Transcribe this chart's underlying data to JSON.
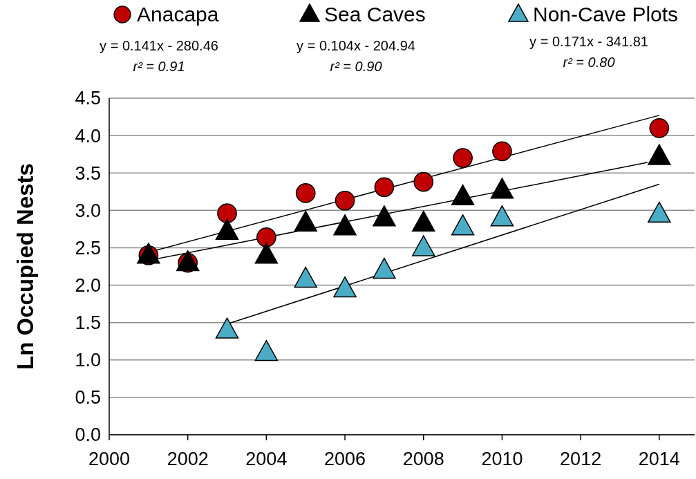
{
  "chart_data": {
    "type": "scatter",
    "ylabel": "Ln Occupied Nests",
    "xlim": [
      2000,
      2014.9
    ],
    "ylim": [
      0,
      4.5
    ],
    "xticks": [
      2000,
      2002,
      2004,
      2006,
      2008,
      2010,
      2012,
      2014
    ],
    "yticks": [
      {
        "value": 0,
        "label": "0.0"
      },
      {
        "value": 0.5,
        "label": "0.5"
      },
      {
        "value": 1,
        "label": "1.0"
      },
      {
        "value": 1.5,
        "label": "1.5"
      },
      {
        "value": 2,
        "label": "2.0"
      },
      {
        "value": 2.5,
        "label": "2.5"
      },
      {
        "value": 3,
        "label": "3.0"
      },
      {
        "value": 3.5,
        "label": "3.5"
      },
      {
        "value": 4,
        "label": "4.0"
      },
      {
        "value": 4.5,
        "label": "4.5"
      }
    ],
    "grid": "y",
    "legend": "top",
    "annotations": [
      "y = 0.141x - 280.46\nr² = 0.91",
      "y = 0.104x - 204.94\nr² = 0.90",
      "y = 0.171x - 341.81\nr² = 0.80"
    ],
    "series": [
      {
        "type": "line",
        "color": "#000000",
        "x": [
          2001,
          2014
        ],
        "values": [
          2.44,
          4.27
        ]
      },
      {
        "type": "line",
        "color": "#000000",
        "x": [
          2001,
          2013.7
        ],
        "values": [
          2.33,
          3.64
        ]
      },
      {
        "type": "line",
        "color": "#000000",
        "x": [
          2003,
          2014
        ],
        "values": [
          1.48,
          3.35
        ]
      },
      {
        "name": "Anacapa",
        "color": "#c00000",
        "marker": "circle",
        "x": [
          2001,
          2002,
          2003,
          2004,
          2005,
          2006,
          2007,
          2008,
          2009,
          2010,
          2014
        ],
        "values": [
          2.4,
          2.3,
          2.96,
          2.64,
          3.23,
          3.13,
          3.31,
          3.38,
          3.7,
          3.79,
          4.1
        ]
      },
      {
        "name": "Sea Caves",
        "color": "#000000",
        "marker": "triangle",
        "x": [
          2001,
          2002,
          2003,
          2004,
          2005,
          2006,
          2007,
          2008,
          2009,
          2010,
          2014
        ],
        "values": [
          2.4,
          2.3,
          2.72,
          2.4,
          2.83,
          2.78,
          2.9,
          2.83,
          3.18,
          3.27,
          3.72
        ]
      },
      {
        "name": "Non-Cave Plots",
        "color": "#4bacc6",
        "marker": "triangle",
        "x": [
          2003,
          2004,
          2005,
          2006,
          2007,
          2008,
          2009,
          2010,
          2014
        ],
        "values": [
          1.4,
          1.1,
          2.08,
          1.95,
          2.2,
          2.5,
          2.78,
          2.9,
          2.95
        ]
      }
    ]
  }
}
